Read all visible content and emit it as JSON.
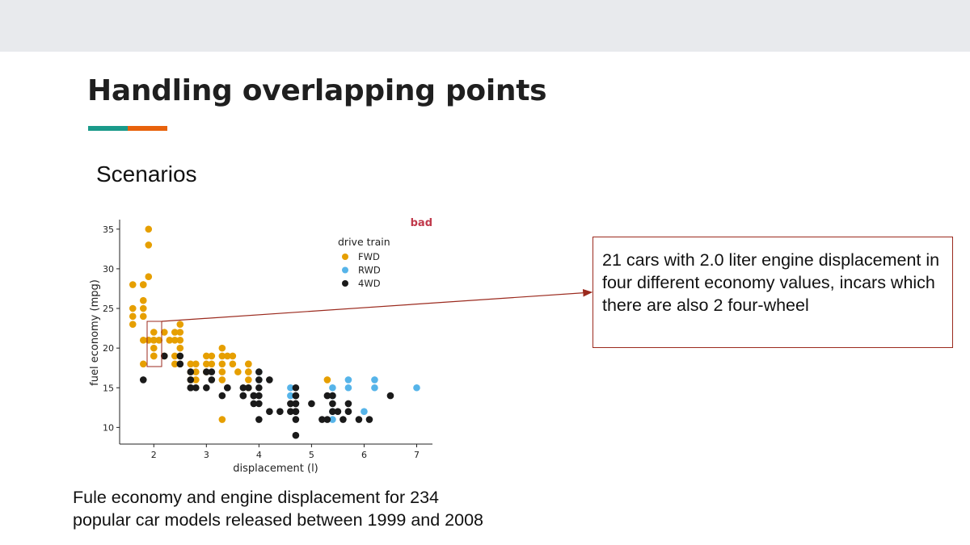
{
  "slide": {
    "title": "Handling overlapping points",
    "subheading": "Scenarios",
    "callout": "21 cars with 2.0 liter engine displacement in four different economy values, incars which there are also 2 four-wheel",
    "caption": "Fule economy and engine displacement for 234 popular car models released between 1999 and 2008",
    "accent_colors": [
      "#1a9a8a",
      "#e8620c"
    ],
    "callout_border_color": "#9b2a1e"
  },
  "chart_data": {
    "type": "scatter",
    "title": "",
    "tag": "bad",
    "xlabel": "displacement (l)",
    "ylabel": "fuel economy (mpg)",
    "xlim": [
      1.35,
      7.3
    ],
    "ylim": [
      7.9,
      36.2
    ],
    "xticks": [
      2,
      3,
      4,
      5,
      6,
      7
    ],
    "yticks": [
      10,
      15,
      20,
      25,
      30,
      35
    ],
    "legend_title": "drive train",
    "legend_position": "top-right",
    "grid": false,
    "series": [
      {
        "name": "FWD",
        "color": "#e69f00",
        "x": [
          1.8,
          1.8,
          1.8,
          1.8,
          1.8,
          1.8,
          1.8,
          1.9,
          1.9,
          1.9,
          1.9,
          1.6,
          1.6,
          1.6,
          1.6,
          2.0,
          2.0,
          2.0,
          2.0,
          2.0,
          2.0,
          2.1,
          2.2,
          2.2,
          2.3,
          2.4,
          2.4,
          2.4,
          2.4,
          2.5,
          2.5,
          2.5,
          2.5,
          2.5,
          2.7,
          2.7,
          2.7,
          2.8,
          2.8,
          2.8,
          3.0,
          3.0,
          3.0,
          3.1,
          3.1,
          3.3,
          3.3,
          3.3,
          3.3,
          3.3,
          3.3,
          3.4,
          3.5,
          3.5,
          3.6,
          3.8,
          3.8,
          3.8,
          3.8,
          3.8,
          3.8,
          5.3
        ],
        "y": [
          18,
          21,
          24,
          25,
          26,
          28,
          28,
          29,
          33,
          35,
          21,
          23,
          24,
          25,
          28,
          19,
          20,
          21,
          22,
          21,
          19,
          21,
          22,
          19,
          21,
          18,
          19,
          21,
          22,
          18,
          20,
          21,
          22,
          23,
          16,
          17,
          18,
          16,
          17,
          18,
          18,
          19,
          17,
          18,
          19,
          11,
          16,
          17,
          18,
          19,
          20,
          19,
          18,
          19,
          17,
          15,
          16,
          17,
          18,
          18,
          17,
          16
        ]
      },
      {
        "name": "RWD",
        "color": "#56b4e9",
        "x": [
          4.0,
          4.0,
          4.6,
          4.6,
          5.4,
          5.4,
          5.4,
          5.4,
          5.7,
          5.7,
          6.0,
          6.2,
          6.2,
          7.0
        ],
        "y": [
          16,
          17,
          15,
          14,
          11,
          12,
          14,
          15,
          15,
          16,
          12,
          15,
          16,
          15
        ]
      },
      {
        "name": "4WD",
        "color": "#1a1a1a",
        "x": [
          1.8,
          2.2,
          2.5,
          2.5,
          2.7,
          2.7,
          2.7,
          2.7,
          2.8,
          3.0,
          3.0,
          3.1,
          3.1,
          3.3,
          3.4,
          3.4,
          3.7,
          3.7,
          3.7,
          3.8,
          3.9,
          3.9,
          3.9,
          4.0,
          4.0,
          4.0,
          4.0,
          4.0,
          4.0,
          4.2,
          4.2,
          4.4,
          4.6,
          4.6,
          4.7,
          4.7,
          4.7,
          4.7,
          4.7,
          4.7,
          4.7,
          4.7,
          4.7,
          5.0,
          5.2,
          5.3,
          5.3,
          5.4,
          5.4,
          5.4,
          5.5,
          5.6,
          5.7,
          5.7,
          5.9,
          6.1,
          6.5
        ],
        "y": [
          16,
          19,
          18,
          19,
          15,
          16,
          17,
          15,
          15,
          17,
          15,
          17,
          16,
          14,
          15,
          15,
          14,
          15,
          14,
          15,
          14,
          13,
          14,
          11,
          13,
          14,
          15,
          16,
          17,
          12,
          16,
          12,
          12,
          13,
          9,
          11,
          12,
          13,
          14,
          14,
          15,
          13,
          12,
          13,
          11,
          11,
          14,
          12,
          13,
          14,
          12,
          11,
          12,
          13,
          11,
          11,
          14
        ]
      }
    ]
  }
}
